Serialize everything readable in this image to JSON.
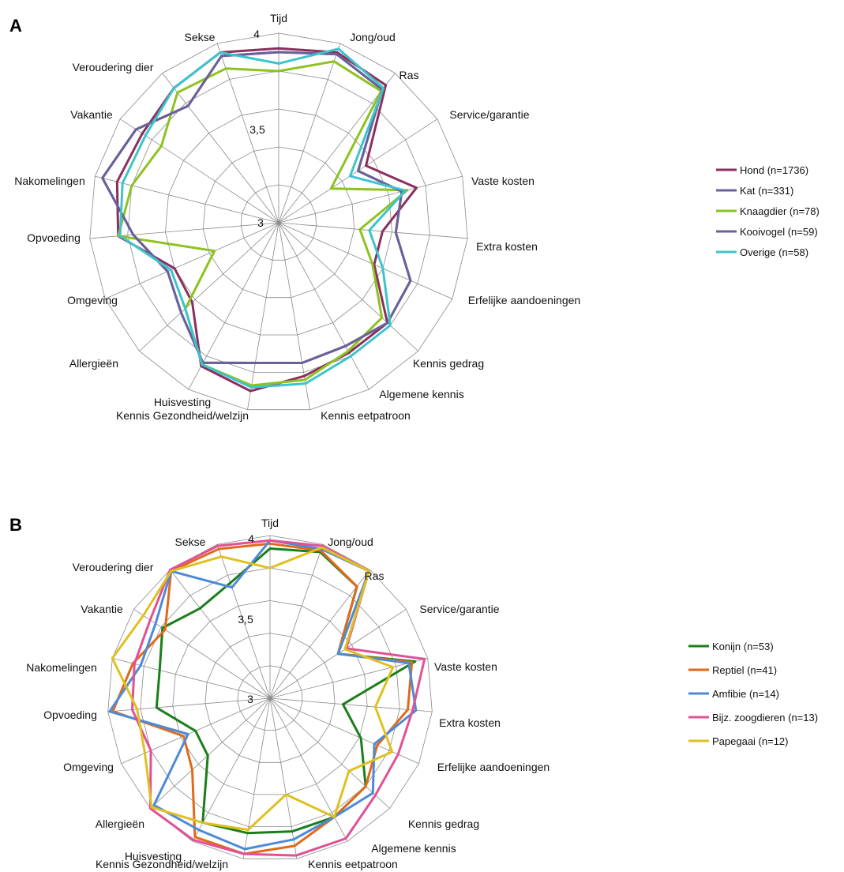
{
  "chart_data": [
    {
      "panel": "A",
      "type": "radar",
      "axes": [
        "Tijd",
        "Jong/oud",
        "Ras",
        "Service/garantie",
        "Vaste kosten",
        "Extra kosten",
        "Erfelijke aandoeningen",
        "Kennis gedrag",
        "Algemene kennis",
        "Kennis eetpatroon",
        "Kennis Gezondheid/welzijn",
        "Huisvesting",
        "Allergieën",
        "Omgeving",
        "Opvoeding",
        "Nakomelingen",
        "Vakantie",
        "Veroudering dier",
        "Sekse"
      ],
      "rlim": [
        3,
        4
      ],
      "ticks": [
        "3",
        "3,5",
        "4"
      ],
      "legend_position": "right",
      "series": [
        {
          "name": "Hond (n=1736)",
          "color": "#8B2F5E",
          "values": [
            3.92,
            3.95,
            3.92,
            3.55,
            3.75,
            3.55,
            3.55,
            3.78,
            3.78,
            3.82,
            3.9,
            3.86,
            3.62,
            3.6,
            3.85,
            3.88,
            3.86,
            3.9,
            3.95
          ]
        },
        {
          "name": "Kat (n=331)",
          "color": "#6A609A",
          "values": [
            3.9,
            3.94,
            3.89,
            3.5,
            3.67,
            3.62,
            3.76,
            3.78,
            3.74,
            3.75,
            3.75,
            3.84,
            3.7,
            3.64,
            3.77,
            3.96,
            3.9,
            3.78,
            3.93
          ]
        },
        {
          "name": "Knaagdier (n=78)",
          "color": "#8DC220",
          "values": [
            3.8,
            3.9,
            3.88,
            3.33,
            3.7,
            3.43,
            3.54,
            3.74,
            3.77,
            3.84,
            3.87,
            3.85,
            3.67,
            3.37,
            3.85,
            3.8,
            3.74,
            3.87,
            3.86
          ]
        },
        {
          "name": "Kooivogel (n=59)",
          "color": "#6A609A",
          "values": [
            3.9,
            3.94,
            3.89,
            3.5,
            3.67,
            3.62,
            3.76,
            3.78,
            3.74,
            3.75,
            3.75,
            3.84,
            3.7,
            3.64,
            3.77,
            3.96,
            3.9,
            3.78,
            3.93
          ]
        },
        {
          "name": "Overige (n=58)",
          "color": "#3CC4CC",
          "values": [
            3.84,
            3.97,
            3.9,
            3.45,
            3.69,
            3.48,
            3.6,
            3.8,
            3.8,
            3.86,
            3.88,
            3.85,
            3.67,
            3.62,
            3.84,
            3.85,
            3.84,
            3.9,
            3.95
          ]
        }
      ]
    },
    {
      "panel": "B",
      "type": "radar",
      "axes": [
        "Tijd",
        "Jong/oud",
        "Ras",
        "Service/garantie",
        "Vaste kosten",
        "Extra kosten",
        "Erfelijke aandoeningen",
        "Kennis gedrag",
        "Algemene kennis",
        "Kennis eetpatroon",
        "Kennis Gezondheid/welzijn",
        "Huisvesting",
        "Allergieën",
        "Omgeving",
        "Opvoeding",
        "Nakomelingen",
        "Vakantie",
        "Veroudering dier",
        "Sekse"
      ],
      "rlim": [
        3,
        4
      ],
      "ticks": [
        "3",
        "3,5",
        "4"
      ],
      "legend_position": "right",
      "series": [
        {
          "name": "Konijn (n=53)",
          "color": "#1A7F1A",
          "values": [
            3.92,
            3.95,
            3.87,
            3.5,
            3.92,
            3.45,
            3.61,
            3.8,
            3.83,
            3.83,
            3.84,
            3.87,
            3.52,
            3.5,
            3.7,
            3.7,
            3.79,
            3.7,
            3.75
          ]
        },
        {
          "name": "Reptiel (n=41)",
          "color": "#E06A1A",
          "values": [
            3.95,
            3.96,
            3.87,
            3.5,
            3.9,
            3.85,
            3.72,
            3.8,
            3.83,
            3.92,
            3.97,
            3.97,
            3.65,
            3.58,
            3.97,
            3.87,
            3.77,
            3.99,
            3.97
          ]
        },
        {
          "name": "Amfibie (n=14)",
          "color": "#4E8AD6",
          "values": [
            3.97,
            3.97,
            3.99,
            3.5,
            3.88,
            3.9,
            3.7,
            3.86,
            3.83,
            3.88,
            3.94,
            3.92,
            3.97,
            3.55,
            3.99,
            3.82,
            3.84,
            3.99,
            3.72
          ]
        },
        {
          "name": "Bijz. zoogdieren (n=13)",
          "color": "#E05196",
          "values": [
            3.97,
            3.99,
            3.99,
            3.56,
            3.98,
            3.88,
            3.86,
            3.88,
            3.98,
            3.98,
            3.97,
            3.99,
            4.0,
            3.8,
            3.85,
            3.86,
            3.88,
            4.0,
            3.99
          ]
        },
        {
          "name": "Papegaai (n=12)",
          "color": "#E0C020",
          "values": [
            3.8,
            3.98,
            3.99,
            3.55,
            3.78,
            3.65,
            3.82,
            3.66,
            3.83,
            3.6,
            3.82,
            3.87,
            3.99,
            3.84,
            3.82,
            4.0,
            3.93,
            3.99,
            3.92
          ]
        }
      ]
    }
  ]
}
